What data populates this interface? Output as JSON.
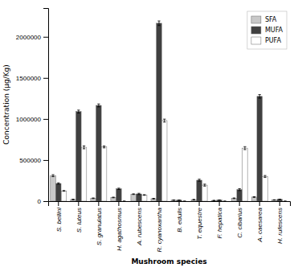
{
  "chart_data": {
    "type": "bar",
    "categories": [
      "S. bellini",
      "S. luteus",
      "S. granulatus",
      "H. agathosmus",
      "A. rubescens",
      "R. cyanoxantha",
      "B. edulis",
      "T. equestre",
      "F. hepatica",
      "C. cibarius",
      "A. caesarea",
      "H. rufescens"
    ],
    "series": [
      {
        "name": "SFA",
        "color": "#c8c8c8",
        "values": [
          310000,
          20000,
          35000,
          45000,
          85000,
          30000,
          12000,
          18000,
          8000,
          35000,
          50000,
          15000
        ],
        "errors": [
          12000,
          4000,
          4000,
          4000,
          4000,
          4000,
          2000,
          4000,
          1500,
          4000,
          4000,
          2000
        ]
      },
      {
        "name": "MUFA",
        "color": "#404040",
        "values": [
          215000,
          1090000,
          1165000,
          150000,
          88000,
          2165000,
          12000,
          255000,
          13000,
          140000,
          1275000,
          22000
        ],
        "errors": [
          8000,
          18000,
          18000,
          8000,
          8000,
          28000,
          2000,
          12000,
          2000,
          12000,
          22000,
          2000
        ]
      },
      {
        "name": "PUFA",
        "color": "#ffffff",
        "values": [
          125000,
          655000,
          660000,
          0,
          75000,
          980000,
          0,
          195000,
          0,
          645000,
          300000,
          0
        ],
        "errors": [
          4000,
          18000,
          12000,
          0,
          4000,
          18000,
          0,
          12000,
          0,
          18000,
          12000,
          0
        ]
      }
    ],
    "x_label": "Mushroom species",
    "y_label": "Concentration (µg/Kg)",
    "ylim": [
      0,
      2350000
    ],
    "yticks": [
      0,
      500000,
      1000000,
      1500000,
      2000000
    ],
    "legend": "upper right",
    "grid": false
  }
}
